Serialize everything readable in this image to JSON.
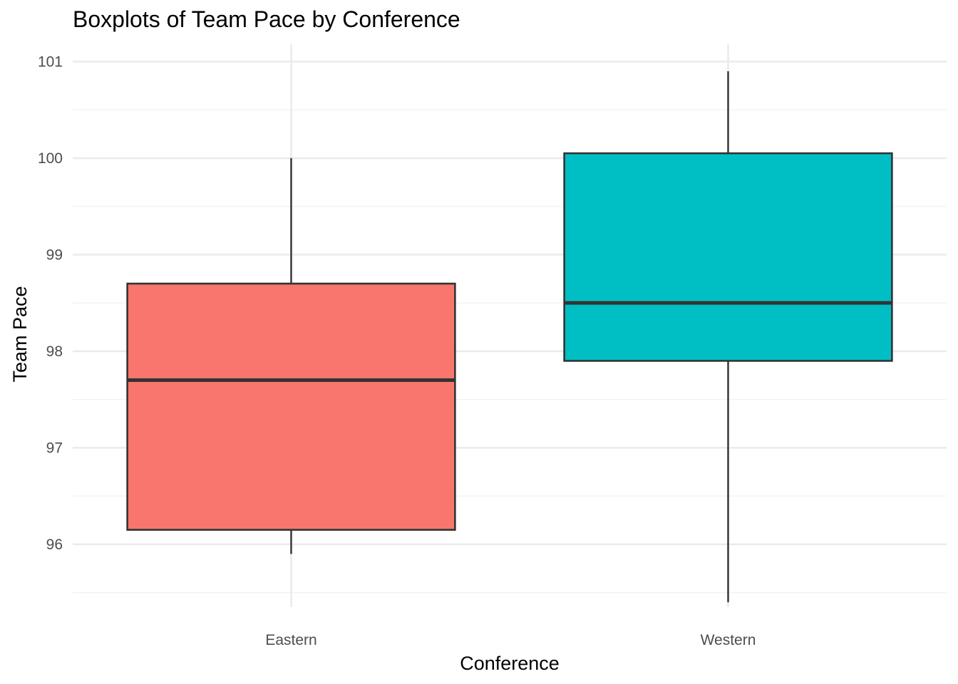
{
  "chart_data": {
    "type": "boxplot",
    "title": "Boxplots of Team Pace by Conference",
    "xlabel": "Conference",
    "ylabel": "Team Pace",
    "ylim": [
      95.35,
      101.18
    ],
    "y_ticks": [
      96,
      97,
      98,
      99,
      100,
      101
    ],
    "y_minor_ticks": [
      95.5,
      96.5,
      97.5,
      98.5,
      99.5,
      100.5
    ],
    "grid": true,
    "legend": "none",
    "categories": [
      "Eastern",
      "Western"
    ],
    "boxes": [
      {
        "category": "Eastern",
        "whisker_low": 95.9,
        "q1": 96.15,
        "median": 97.7,
        "q3": 98.7,
        "whisker_high": 100.0,
        "color": "#F8766D"
      },
      {
        "category": "Western",
        "whisker_low": 95.4,
        "q1": 97.9,
        "median": 98.5,
        "q3": 100.05,
        "whisker_high": 100.9,
        "color": "#00BFC4"
      }
    ],
    "colors": {
      "grid_major": "#ebebeb",
      "grid_minor": "#f2f2f2",
      "outline": "#333333"
    }
  }
}
